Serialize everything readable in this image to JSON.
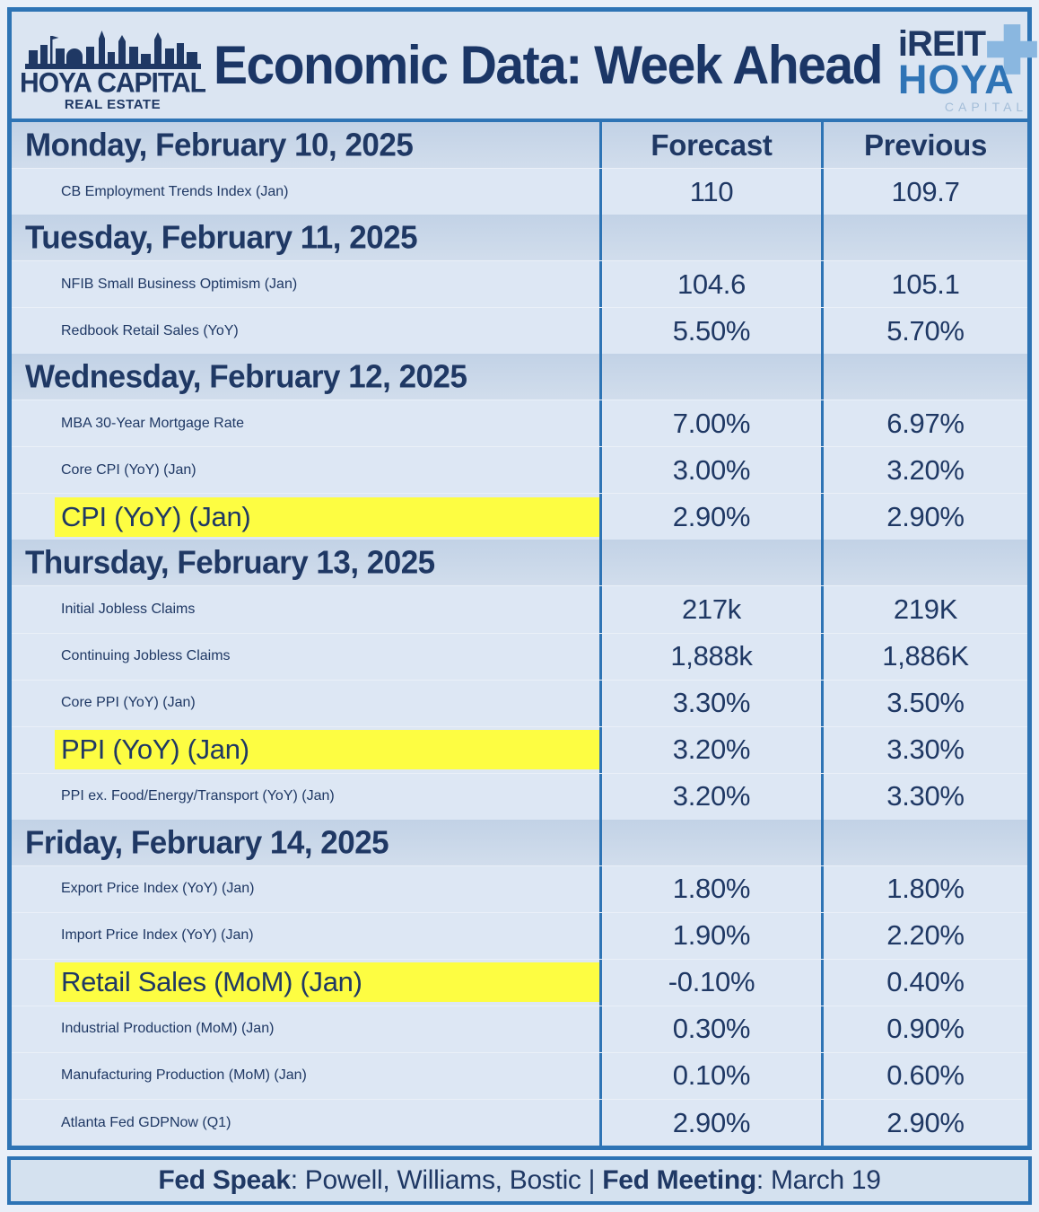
{
  "header": {
    "title": "Economic Data: Week Ahead",
    "left_logo": {
      "line1": "HOYA CAPITAL",
      "line2": "REAL ESTATE"
    },
    "right_logo": {
      "line1": "iREIT",
      "line2": "HOYA",
      "line3": "CAPITAL"
    }
  },
  "table": {
    "columns": [
      "Forecast",
      "Previous"
    ],
    "rows": [
      {
        "type": "section",
        "label": "Monday, February 10, 2025",
        "show_column_headers": true
      },
      {
        "type": "data",
        "label": "CB Employment Trends Index (Jan)",
        "forecast": "110",
        "previous": "109.7",
        "highlight": false
      },
      {
        "type": "section",
        "label": "Tuesday, February 11, 2025",
        "show_column_headers": false
      },
      {
        "type": "data",
        "label": "NFIB Small Business Optimism (Jan)",
        "forecast": "104.6",
        "previous": "105.1",
        "highlight": false
      },
      {
        "type": "data",
        "label": "Redbook Retail Sales (YoY)",
        "forecast": "5.50%",
        "previous": "5.70%",
        "highlight": false
      },
      {
        "type": "section",
        "label": "Wednesday, February 12, 2025",
        "show_column_headers": false
      },
      {
        "type": "data",
        "label": "MBA 30-Year Mortgage Rate",
        "forecast": "7.00%",
        "previous": "6.97%",
        "highlight": false
      },
      {
        "type": "data",
        "label": "Core CPI (YoY) (Jan)",
        "forecast": "3.00%",
        "previous": "3.20%",
        "highlight": false
      },
      {
        "type": "data",
        "label": "CPI (YoY) (Jan)",
        "forecast": "2.90%",
        "previous": "2.90%",
        "highlight": true
      },
      {
        "type": "section",
        "label": "Thursday, February 13, 2025",
        "show_column_headers": false
      },
      {
        "type": "data",
        "label": "Initial Jobless Claims",
        "forecast": "217k",
        "previous": "219K",
        "highlight": false
      },
      {
        "type": "data",
        "label": "Continuing Jobless Claims",
        "forecast": "1,888k",
        "previous": "1,886K",
        "highlight": false
      },
      {
        "type": "data",
        "label": "Core PPI (YoY) (Jan)",
        "forecast": "3.30%",
        "previous": "3.50%",
        "highlight": false
      },
      {
        "type": "data",
        "label": "PPI (YoY) (Jan)",
        "forecast": "3.20%",
        "previous": "3.30%",
        "highlight": true
      },
      {
        "type": "data",
        "label": "PPI ex. Food/Energy/Transport (YoY) (Jan)",
        "forecast": "3.20%",
        "previous": "3.30%",
        "highlight": false
      },
      {
        "type": "section",
        "label": "Friday, February 14, 2025",
        "show_column_headers": false
      },
      {
        "type": "data",
        "label": "Export Price Index (YoY) (Jan)",
        "forecast": "1.80%",
        "previous": "1.80%",
        "highlight": false
      },
      {
        "type": "data",
        "label": "Import Price Index (YoY) (Jan)",
        "forecast": "1.90%",
        "previous": "2.20%",
        "highlight": false
      },
      {
        "type": "data",
        "label": "Retail Sales (MoM) (Jan)",
        "forecast": "-0.10%",
        "previous": "0.40%",
        "highlight": true
      },
      {
        "type": "data",
        "label": "Industrial Production (MoM) (Jan)",
        "forecast": "0.30%",
        "previous": "0.90%",
        "highlight": false
      },
      {
        "type": "data",
        "label": "Manufacturing Production (MoM) (Jan)",
        "forecast": "0.10%",
        "previous": "0.60%",
        "highlight": false
      },
      {
        "type": "data",
        "label": "Atlanta Fed GDPNow (Q1)",
        "forecast": "2.90%",
        "previous": "2.90%",
        "highlight": false
      }
    ]
  },
  "footer": {
    "fed_speak_label": "Fed Speak",
    "fed_speak_value": ": Powell, Williams, Bostic ",
    "separator": "| ",
    "fed_meeting_label": "Fed Meeting",
    "fed_meeting_value": ": March 19"
  },
  "colors": {
    "navy_text": "#1f3864",
    "border_blue": "#2e74b5",
    "section_bg": "#c8d6e9",
    "data_row_bg": "#dde7f4",
    "highlight_yellow": "#fdfd42",
    "hoya_blue": "#2f74b6",
    "plus_light_blue": "#8ab7e0"
  }
}
